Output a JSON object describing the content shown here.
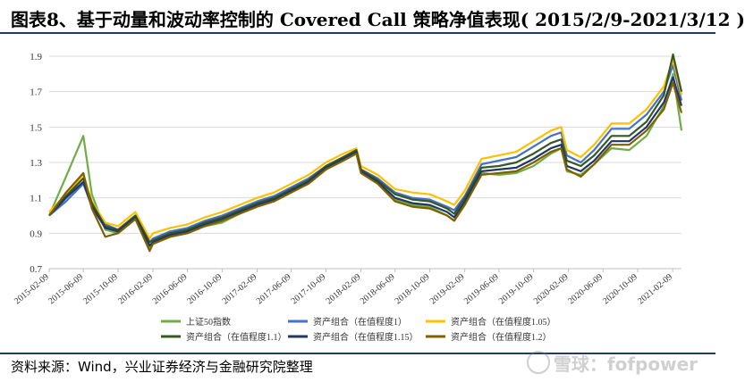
{
  "title": "图表8、基于动量和波动率控制的 Covered Call 策略净值表现( 2015/2/9-2021/3/12 )",
  "source": "资料来源：Wind，兴业证券经济与金融研究院整理",
  "watermark": "雪球：fofpower",
  "chart_data": {
    "type": "line",
    "ylim": [
      0.7,
      1.9
    ],
    "yticks": [
      0.7,
      0.9,
      1.1,
      1.3,
      1.5,
      1.7,
      1.9
    ],
    "xticks": [
      "2015-02-09",
      "2015-06-09",
      "2015-10-09",
      "2016-02-09",
      "2016-06-09",
      "2016-10-09",
      "2017-02-09",
      "2017-06-09",
      "2017-10-09",
      "2018-02-09",
      "2018-06-09",
      "2018-10-09",
      "2019-02-09",
      "2019-06-09",
      "2019-10-09",
      "2020-02-09",
      "2020-06-09",
      "2020-10-09",
      "2021-02-09"
    ],
    "x": [
      "2015-02-09",
      "2015-04-09",
      "2015-06-09",
      "2015-07-09",
      "2015-08-25",
      "2015-10-09",
      "2015-12-09",
      "2016-01-28",
      "2016-02-09",
      "2016-04-09",
      "2016-06-09",
      "2016-08-09",
      "2016-10-09",
      "2016-12-09",
      "2017-02-09",
      "2017-04-09",
      "2017-06-09",
      "2017-08-09",
      "2017-10-09",
      "2017-12-09",
      "2018-01-24",
      "2018-02-09",
      "2018-04-09",
      "2018-06-09",
      "2018-08-09",
      "2018-10-09",
      "2018-12-09",
      "2019-01-03",
      "2019-02-09",
      "2019-04-09",
      "2019-06-09",
      "2019-08-09",
      "2019-10-09",
      "2019-12-09",
      "2020-01-14",
      "2020-02-03",
      "2020-03-23",
      "2020-05-09",
      "2020-07-09",
      "2020-09-09",
      "2020-11-09",
      "2021-01-09",
      "2021-02-10",
      "2021-03-12"
    ],
    "grid": true,
    "legend_position": "bottom",
    "series": [
      {
        "name": "上证50指数",
        "color": "#70ad47",
        "width": 2.2,
        "values": [
          1.0,
          1.22,
          1.45,
          1.12,
          0.92,
          0.9,
          0.98,
          0.82,
          0.84,
          0.88,
          0.9,
          0.94,
          0.96,
          1.01,
          1.05,
          1.08,
          1.13,
          1.19,
          1.26,
          1.32,
          1.37,
          1.25,
          1.18,
          1.09,
          1.06,
          1.05,
          1.0,
          0.97,
          1.07,
          1.24,
          1.23,
          1.24,
          1.28,
          1.35,
          1.38,
          1.25,
          1.23,
          1.29,
          1.38,
          1.37,
          1.45,
          1.62,
          1.8,
          1.48
        ]
      },
      {
        "name": "资产组合（在值程度1）",
        "color": "#4472c4",
        "width": 2.2,
        "values": [
          1.0,
          1.08,
          1.18,
          1.05,
          0.95,
          0.92,
          1.0,
          0.85,
          0.87,
          0.91,
          0.93,
          0.97,
          1.0,
          1.04,
          1.08,
          1.11,
          1.16,
          1.21,
          1.28,
          1.33,
          1.36,
          1.26,
          1.21,
          1.13,
          1.1,
          1.09,
          1.05,
          1.03,
          1.11,
          1.29,
          1.31,
          1.33,
          1.39,
          1.45,
          1.47,
          1.34,
          1.3,
          1.37,
          1.49,
          1.49,
          1.57,
          1.7,
          1.85,
          1.65
        ]
      },
      {
        "name": "资产组合（在值程度1.05）",
        "color": "#ffc000",
        "width": 2.2,
        "values": [
          1.02,
          1.12,
          1.23,
          1.08,
          0.96,
          0.94,
          1.02,
          0.87,
          0.9,
          0.93,
          0.95,
          0.99,
          1.02,
          1.06,
          1.1,
          1.13,
          1.18,
          1.23,
          1.3,
          1.35,
          1.38,
          1.28,
          1.23,
          1.15,
          1.13,
          1.12,
          1.08,
          1.06,
          1.14,
          1.32,
          1.34,
          1.36,
          1.42,
          1.48,
          1.5,
          1.37,
          1.33,
          1.4,
          1.52,
          1.52,
          1.6,
          1.73,
          1.88,
          1.68
        ]
      },
      {
        "name": "资产组合（在值程度1.1）",
        "color": "#385723",
        "width": 2.2,
        "values": [
          1.0,
          1.11,
          1.21,
          1.07,
          0.94,
          0.92,
          1.0,
          0.85,
          0.86,
          0.9,
          0.92,
          0.96,
          0.99,
          1.03,
          1.07,
          1.1,
          1.15,
          1.2,
          1.28,
          1.33,
          1.37,
          1.26,
          1.2,
          1.12,
          1.09,
          1.08,
          1.04,
          1.01,
          1.1,
          1.27,
          1.28,
          1.3,
          1.35,
          1.41,
          1.43,
          1.31,
          1.28,
          1.34,
          1.45,
          1.45,
          1.53,
          1.68,
          1.91,
          1.7
        ]
      },
      {
        "name": "资产组合（在值程度1.15）",
        "color": "#203864",
        "width": 2.2,
        "values": [
          1.0,
          1.1,
          1.19,
          1.05,
          0.93,
          0.91,
          0.99,
          0.83,
          0.85,
          0.89,
          0.91,
          0.95,
          0.98,
          1.02,
          1.06,
          1.09,
          1.14,
          1.19,
          1.27,
          1.32,
          1.36,
          1.25,
          1.19,
          1.1,
          1.07,
          1.06,
          1.02,
          0.99,
          1.08,
          1.25,
          1.26,
          1.27,
          1.32,
          1.38,
          1.4,
          1.28,
          1.25,
          1.31,
          1.42,
          1.42,
          1.5,
          1.64,
          1.78,
          1.62
        ]
      },
      {
        "name": "资产组合（在值程度1.2）",
        "color": "#7f6000",
        "width": 2.2,
        "values": [
          1.0,
          1.13,
          1.24,
          1.04,
          0.88,
          0.9,
          0.98,
          0.8,
          0.84,
          0.88,
          0.9,
          0.94,
          0.97,
          1.01,
          1.05,
          1.08,
          1.13,
          1.18,
          1.26,
          1.31,
          1.35,
          1.24,
          1.18,
          1.08,
          1.05,
          1.04,
          1.0,
          0.97,
          1.06,
          1.23,
          1.24,
          1.25,
          1.3,
          1.36,
          1.38,
          1.26,
          1.22,
          1.29,
          1.4,
          1.4,
          1.48,
          1.6,
          1.75,
          1.58
        ]
      }
    ]
  }
}
